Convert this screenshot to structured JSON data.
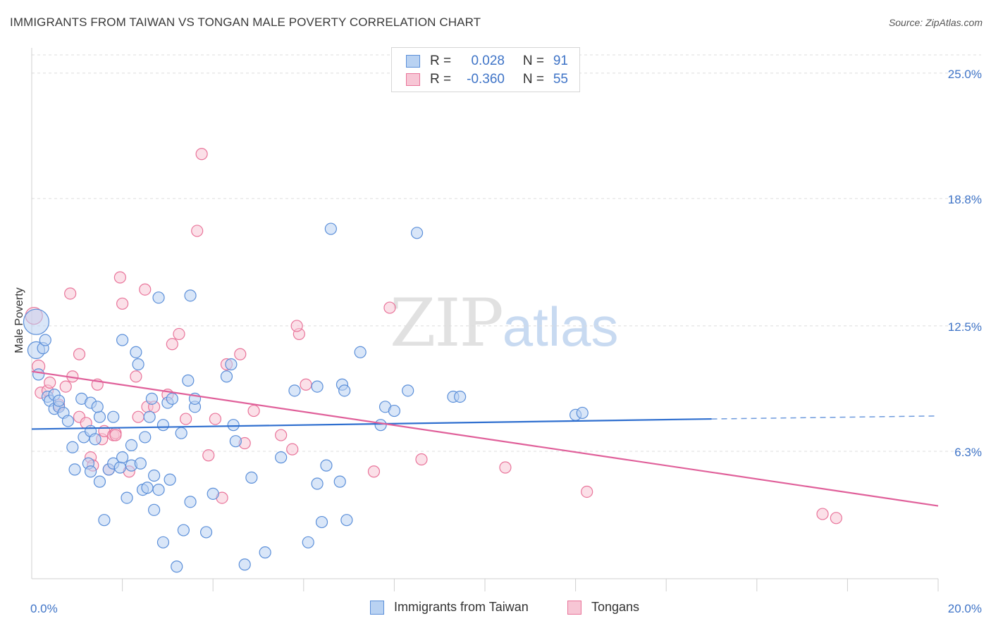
{
  "header": {
    "title": "IMMIGRANTS FROM TAIWAN VS TONGAN MALE POVERTY CORRELATION CHART",
    "source": "Source: ZipAtlas.com"
  },
  "watermark": {
    "zip": "ZIP",
    "atlas": "atlas"
  },
  "legend": {
    "rows": [
      {
        "r_label": "R =",
        "r_value": "0.028",
        "n_label": "N =",
        "n_value": "91"
      },
      {
        "r_label": "R =",
        "r_value": "-0.360",
        "n_label": "N =",
        "n_value": "55"
      }
    ]
  },
  "chart_data": {
    "type": "scatter",
    "title": "IMMIGRANTS FROM TAIWAN VS TONGAN MALE POVERTY CORRELATION CHART",
    "xlabel": "",
    "ylabel": "Male Poverty",
    "xlim": [
      0,
      20
    ],
    "ylim": [
      0,
      25.9
    ],
    "x_tick_labels": [
      "0.0%",
      "20.0%"
    ],
    "y_ticks": [
      {
        "value": 6.3,
        "label": "6.3%"
      },
      {
        "value": 12.5,
        "label": "12.5%"
      },
      {
        "value": 18.8,
        "label": "18.8%"
      },
      {
        "value": 25.0,
        "label": "25.0%"
      }
    ],
    "grid": true,
    "legend_position": "top-center",
    "colors": {
      "blue": "#5b8fd9",
      "blue_fill": "#b9d2f2",
      "pink": "#e9749a",
      "pink_fill": "#f7c6d5",
      "blue_line": "#2f6fcf",
      "pink_line": "#e0609a"
    },
    "series": [
      {
        "name": "Immigrants from Taiwan",
        "color": "#5b8fd9",
        "trend": {
          "x0": 0,
          "y0": 7.4,
          "x1": 15.0,
          "y1": 7.9,
          "dash_to_x": 20,
          "dash_to_y": 8.05
        },
        "points": [
          [
            0.1,
            12.7,
            18
          ],
          [
            0.1,
            11.3,
            12
          ],
          [
            0.25,
            11.4,
            8
          ],
          [
            0.3,
            11.8,
            8
          ],
          [
            0.15,
            10.1,
            8
          ],
          [
            0.35,
            9.0,
            8
          ],
          [
            0.4,
            8.8,
            8
          ],
          [
            0.5,
            9.1,
            8
          ],
          [
            0.5,
            8.4,
            8
          ],
          [
            0.6,
            8.5,
            8
          ],
          [
            0.7,
            8.2,
            8
          ],
          [
            0.8,
            7.8,
            8
          ],
          [
            0.6,
            8.8,
            8
          ],
          [
            1.1,
            8.9,
            8
          ],
          [
            1.3,
            8.7,
            8
          ],
          [
            0.9,
            6.5,
            8
          ],
          [
            1.15,
            7.0,
            8
          ],
          [
            1.3,
            7.3,
            8
          ],
          [
            1.4,
            6.9,
            8
          ],
          [
            0.95,
            5.4,
            8
          ],
          [
            1.25,
            5.7,
            8
          ],
          [
            1.3,
            5.3,
            8
          ],
          [
            1.5,
            4.8,
            8
          ],
          [
            1.5,
            8.0,
            8
          ],
          [
            1.45,
            8.5,
            8
          ],
          [
            1.8,
            8.0,
            8
          ],
          [
            1.7,
            5.4,
            8
          ],
          [
            1.8,
            5.7,
            8
          ],
          [
            1.95,
            5.5,
            8
          ],
          [
            2.0,
            6.0,
            8
          ],
          [
            2.1,
            4.0,
            8
          ],
          [
            2.2,
            5.6,
            8
          ],
          [
            2.2,
            6.6,
            8
          ],
          [
            2.45,
            4.4,
            8
          ],
          [
            2.55,
            4.5,
            8
          ],
          [
            2.5,
            7.0,
            8
          ],
          [
            2.6,
            8.0,
            8
          ],
          [
            2.65,
            8.9,
            8
          ],
          [
            2.7,
            5.1,
            8
          ],
          [
            2.8,
            4.4,
            8
          ],
          [
            2.0,
            11.8,
            8
          ],
          [
            2.3,
            11.2,
            8
          ],
          [
            2.35,
            10.6,
            8
          ],
          [
            2.8,
            13.9,
            8
          ],
          [
            3.0,
            8.7,
            8
          ],
          [
            3.05,
            4.9,
            8
          ],
          [
            3.1,
            8.9,
            8
          ],
          [
            2.9,
            7.6,
            8
          ],
          [
            3.3,
            7.2,
            8
          ],
          [
            3.45,
            9.8,
            8
          ],
          [
            3.5,
            3.8,
            8
          ],
          [
            3.5,
            14.0,
            8
          ],
          [
            3.6,
            8.5,
            8
          ],
          [
            3.6,
            8.9,
            8
          ],
          [
            3.35,
            2.4,
            8
          ],
          [
            2.9,
            1.8,
            8
          ],
          [
            3.2,
            0.6,
            8
          ],
          [
            1.6,
            2.9,
            8
          ],
          [
            3.85,
            2.3,
            8
          ],
          [
            4.0,
            4.2,
            8
          ],
          [
            4.3,
            10.0,
            8
          ],
          [
            4.4,
            10.6,
            8
          ],
          [
            4.45,
            7.6,
            8
          ],
          [
            4.5,
            6.8,
            8
          ],
          [
            4.85,
            5.0,
            8
          ],
          [
            4.7,
            0.7,
            8
          ],
          [
            5.15,
            1.3,
            8
          ],
          [
            5.5,
            6.0,
            8
          ],
          [
            5.8,
            9.3,
            8
          ],
          [
            6.1,
            1.8,
            8
          ],
          [
            6.3,
            4.7,
            8
          ],
          [
            6.3,
            9.5,
            8
          ],
          [
            6.4,
            2.8,
            8
          ],
          [
            6.5,
            5.6,
            8
          ],
          [
            6.6,
            17.3,
            8
          ],
          [
            6.8,
            4.8,
            8
          ],
          [
            6.85,
            9.6,
            8
          ],
          [
            6.9,
            9.3,
            8
          ],
          [
            6.95,
            2.9,
            8
          ],
          [
            7.25,
            11.2,
            8
          ],
          [
            7.7,
            7.6,
            8
          ],
          [
            7.8,
            8.5,
            8
          ],
          [
            8.0,
            8.3,
            8
          ],
          [
            8.3,
            9.3,
            8
          ],
          [
            8.5,
            17.1,
            8
          ],
          [
            9.3,
            9.0,
            8
          ],
          [
            9.45,
            9.0,
            8
          ],
          [
            12.0,
            8.1,
            8
          ],
          [
            12.15,
            8.2,
            8
          ],
          [
            2.7,
            3.4,
            8
          ],
          [
            2.4,
            5.7,
            8
          ]
        ]
      },
      {
        "name": "Tongans",
        "color": "#e9749a",
        "trend": {
          "x0": 0,
          "y0": 10.25,
          "x1": 20,
          "y1": 3.6
        },
        "points": [
          [
            0.05,
            13.0,
            12
          ],
          [
            0.15,
            10.5,
            9
          ],
          [
            0.2,
            9.2,
            8
          ],
          [
            0.35,
            9.3,
            8
          ],
          [
            0.4,
            9.7,
            8
          ],
          [
            0.6,
            8.5,
            8
          ],
          [
            0.75,
            9.5,
            8
          ],
          [
            0.85,
            14.1,
            8
          ],
          [
            0.9,
            10.0,
            8
          ],
          [
            1.05,
            8.0,
            8
          ],
          [
            1.05,
            11.1,
            8
          ],
          [
            1.2,
            7.7,
            8
          ],
          [
            1.3,
            6.0,
            8
          ],
          [
            1.35,
            5.6,
            8
          ],
          [
            1.45,
            9.6,
            8
          ],
          [
            1.55,
            6.9,
            8
          ],
          [
            1.6,
            7.3,
            8
          ],
          [
            1.7,
            5.4,
            8
          ],
          [
            1.8,
            7.1,
            8
          ],
          [
            1.85,
            7.2,
            8
          ],
          [
            1.95,
            14.9,
            8
          ],
          [
            2.0,
            13.6,
            8
          ],
          [
            2.15,
            5.3,
            8
          ],
          [
            2.3,
            10.0,
            8
          ],
          [
            2.35,
            8.0,
            8
          ],
          [
            2.5,
            14.3,
            8
          ],
          [
            2.55,
            8.5,
            8
          ],
          [
            2.7,
            8.5,
            8
          ],
          [
            3.0,
            9.1,
            8
          ],
          [
            3.1,
            11.6,
            8
          ],
          [
            3.25,
            12.1,
            8
          ],
          [
            3.4,
            7.9,
            8
          ],
          [
            3.65,
            17.2,
            8
          ],
          [
            3.75,
            21.0,
            8
          ],
          [
            3.9,
            6.1,
            8
          ],
          [
            4.05,
            7.9,
            8
          ],
          [
            4.2,
            4.0,
            8
          ],
          [
            4.3,
            10.6,
            8
          ],
          [
            4.6,
            11.1,
            8
          ],
          [
            4.7,
            6.7,
            8
          ],
          [
            4.9,
            8.3,
            8
          ],
          [
            5.5,
            7.1,
            8
          ],
          [
            5.75,
            6.4,
            8
          ],
          [
            5.9,
            12.1,
            8
          ],
          [
            5.85,
            12.5,
            8
          ],
          [
            6.05,
            9.6,
            8
          ],
          [
            7.55,
            5.3,
            8
          ],
          [
            7.9,
            13.4,
            8
          ],
          [
            8.6,
            5.9,
            8
          ],
          [
            10.45,
            5.5,
            8
          ],
          [
            12.25,
            4.3,
            8
          ],
          [
            17.45,
            3.2,
            8
          ],
          [
            17.75,
            3.0,
            8
          ],
          [
            1.85,
            7.1,
            8
          ],
          [
            0.6,
            8.6,
            8
          ]
        ]
      }
    ]
  }
}
